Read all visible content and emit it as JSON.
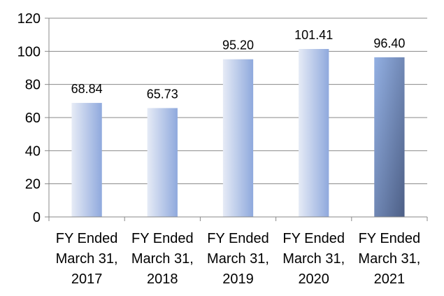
{
  "chart_data": {
    "type": "bar",
    "title": "",
    "xlabel": "",
    "ylabel": "",
    "categories": [
      [
        "FY Ended",
        "March 31,",
        "2017"
      ],
      [
        "FY Ended",
        "March 31,",
        "2018"
      ],
      [
        "FY Ended",
        "March 31,",
        "2019"
      ],
      [
        "FY Ended",
        "March 31,",
        "2020"
      ],
      [
        "FY Ended",
        "March 31,",
        "2021"
      ]
    ],
    "values": [
      68.84,
      65.73,
      95.2,
      101.41,
      96.4
    ],
    "value_labels": [
      "68.84",
      "65.73",
      "95.20",
      "101.41",
      "96.40"
    ],
    "ylim": [
      0,
      120
    ],
    "yticks": [
      0,
      20,
      40,
      60,
      80,
      100,
      120
    ],
    "grid": true,
    "legend": "none",
    "colors": {
      "bar_light_start": "#e6ebf6",
      "bar_light_end": "#8fa9dd",
      "bar_highlight_start": "#93b0e3",
      "bar_highlight_end": "#4d5f86",
      "gridline": "#888888",
      "axis": "#888888"
    },
    "highlight_index": 4
  }
}
